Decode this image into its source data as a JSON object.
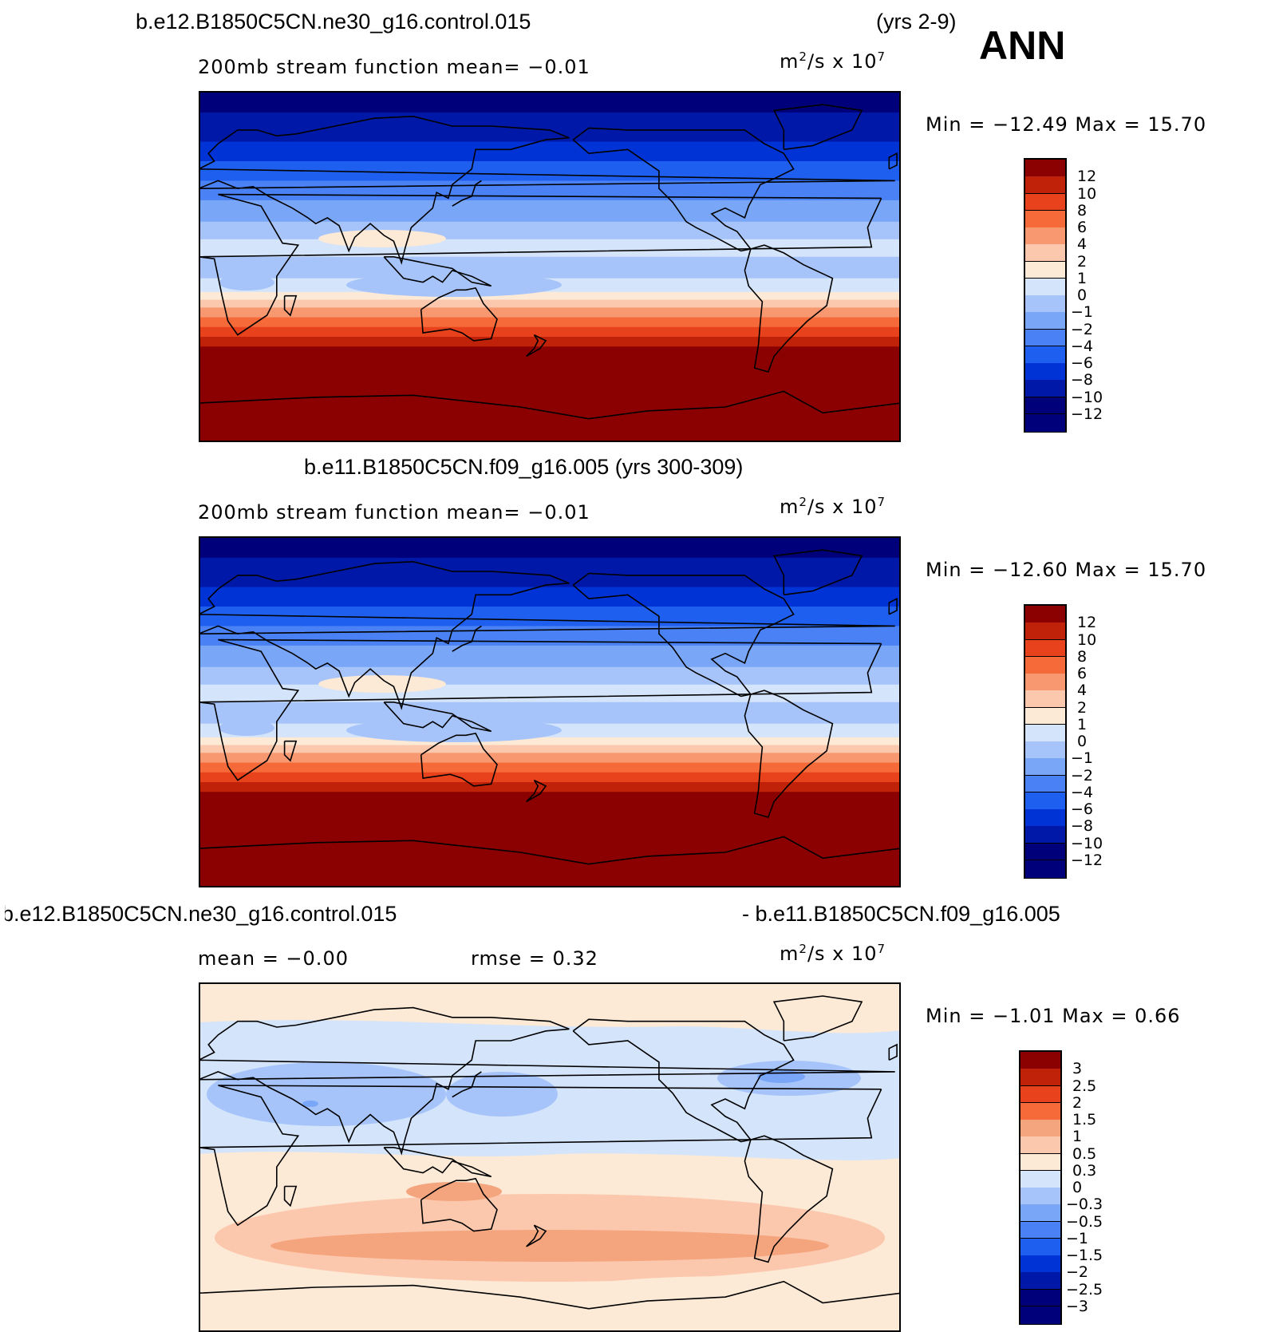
{
  "header": {
    "case_a": "b.e12.B1850C5CN.ne30_g16.control.015",
    "years_a": "(yrs 2-9)",
    "season": "ANN",
    "case_b_title": "b.e11.B1850C5CN.f09_g16.005 (yrs 300-309)",
    "diff_left": "b.e12.B1850C5CN.ne30_g16.control.015",
    "diff_right": "- b.e11.B1850C5CN.f09_g16.005"
  },
  "panels": [
    {
      "id": "panel-a",
      "left_label": "200mb  stream  function    mean=   −0.01",
      "units_base": "m",
      "units_exp1": "2",
      "units_mid": "/s  x  10",
      "units_exp2": "7",
      "minmax": "Min  =  −12.49  Max  =    15.70"
    },
    {
      "id": "panel-b",
      "left_label": "200mb  stream  function    mean=   −0.01",
      "units_base": "m",
      "units_exp1": "2",
      "units_mid": "/s  x  10",
      "units_exp2": "7",
      "minmax": "Min  =  −12.60  Max  =    15.70"
    },
    {
      "id": "panel-diff",
      "mean_label": "mean  =    −0.00",
      "rmse_label": "rmse  =     0.32",
      "units_base": "m",
      "units_exp1": "2",
      "units_mid": "/s  x  10",
      "units_exp2": "7",
      "minmax": "Min  =    −1.01  Max  =     0.66"
    }
  ],
  "colors": {
    "abs_scale": [
      "#00007a",
      "#0018a8",
      "#0033d6",
      "#1f5ff0",
      "#4a82f5",
      "#7aa6f8",
      "#a6c4fa",
      "#d3e4fb",
      "#fce9d6",
      "#fcc8ad",
      "#f89870",
      "#f66a3a",
      "#e8421c",
      "#bf2208",
      "#8b0000"
    ],
    "diff_scale": [
      "#00007a",
      "#0018a8",
      "#0033d6",
      "#1f5ff0",
      "#4a82f5",
      "#7aa6f8",
      "#a6c4fa",
      "#d3e4fb",
      "#fce9d6",
      "#fcc8ad",
      "#f5a57e",
      "#f66a3a",
      "#e8421c",
      "#bf2208",
      "#8b0000"
    ]
  },
  "chart_data": [
    {
      "type": "heatmap",
      "title": "b.e12.B1850C5CN.ne30_g16.control.015 (yrs 2-9)",
      "variable": "200mb stream function",
      "units": "m2/s x 10^7",
      "mean": -0.01,
      "min": -12.49,
      "max": 15.7,
      "levels": [
        12,
        10,
        8,
        6,
        4,
        2,
        1,
        0,
        -1,
        -2,
        -4,
        -6,
        -8,
        -10,
        -12
      ],
      "level_labels": [
        "12",
        "10",
        "8",
        "6",
        "4",
        "2",
        "1",
        "0",
        "−1",
        "−2",
        "−4",
        "−6",
        "−8",
        "−10",
        "−12"
      ],
      "zonal_profile_lat": [
        90,
        70,
        60,
        50,
        40,
        30,
        20,
        10,
        0,
        -10,
        -20,
        -30,
        -40,
        -50,
        -60,
        -90
      ],
      "zonal_profile_value": [
        -13,
        -11,
        -9,
        -7,
        -5,
        -3,
        -1.5,
        -0.5,
        -1.5,
        -0.5,
        2,
        6,
        10,
        13,
        15,
        15.5
      ]
    },
    {
      "type": "heatmap",
      "title": "b.e11.B1850C5CN.f09_g16.005 (yrs 300-309)",
      "variable": "200mb stream function",
      "units": "m2/s x 10^7",
      "mean": -0.01,
      "min": -12.6,
      "max": 15.7,
      "levels": [
        12,
        10,
        8,
        6,
        4,
        2,
        1,
        0,
        -1,
        -2,
        -4,
        -6,
        -8,
        -10,
        -12
      ],
      "level_labels": [
        "12",
        "10",
        "8",
        "6",
        "4",
        "2",
        "1",
        "0",
        "−1",
        "−2",
        "−4",
        "−6",
        "−8",
        "−10",
        "−12"
      ],
      "zonal_profile_lat": [
        90,
        70,
        60,
        50,
        40,
        30,
        20,
        10,
        0,
        -10,
        -20,
        -30,
        -40,
        -50,
        -60,
        -90
      ],
      "zonal_profile_value": [
        -13,
        -11,
        -9,
        -7,
        -5,
        -3,
        -1.5,
        -0.5,
        -1.5,
        -0.5,
        2,
        6,
        10,
        13,
        15,
        15.5
      ]
    },
    {
      "type": "heatmap",
      "title": "b.e12.B1850C5CN.ne30_g16.control.015 - b.e11.B1850C5CN.f09_g16.005",
      "variable": "200mb stream function difference",
      "units": "m2/s x 10^7",
      "mean": -0.0,
      "rmse": 0.32,
      "min": -1.01,
      "max": 0.66,
      "levels": [
        3,
        2.5,
        2,
        1.5,
        1,
        0.5,
        0.3,
        0,
        -0.3,
        -0.5,
        -1,
        -1.5,
        -2,
        -2.5,
        -3
      ],
      "level_labels": [
        "3",
        "2.5",
        "2",
        "1.5",
        "1",
        "0.5",
        "0.3",
        "0",
        "−0.3",
        "−0.5",
        "−1",
        "−1.5",
        "−2",
        "−2.5",
        "−3"
      ]
    }
  ]
}
